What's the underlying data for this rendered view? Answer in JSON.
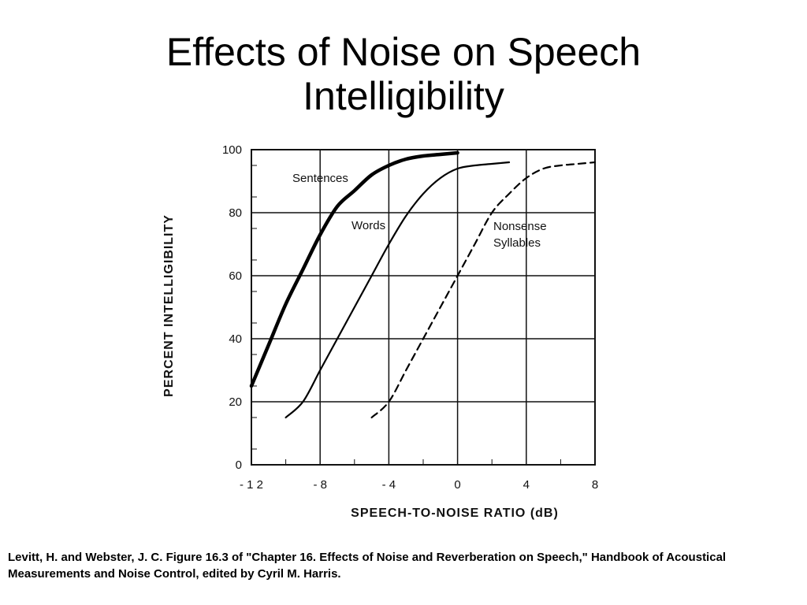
{
  "slide": {
    "title_line1": "Effects of Noise on Speech",
    "title_line2": "Intelligibility",
    "citation": "Levitt, H. and Webster, J. C. Figure 16.3 of \"Chapter 16. Effects of Noise and Reverberation on Speech,\" Handbook of Acoustical Measurements and Noise Control, edited by Cyril M. Harris."
  },
  "chart_data": {
    "type": "line",
    "title": "",
    "xlabel": "SPEECH-TO-NOISE  RATIO  (dB)",
    "ylabel": "PERCENT   INTELLIGIBILITY",
    "xlim": [
      -12,
      8
    ],
    "ylim": [
      0,
      100
    ],
    "x_ticks": [
      -12,
      -8,
      -4,
      0,
      4,
      8
    ],
    "x_tick_labels": [
      "- 1 2",
      "- 8",
      "- 4",
      "0",
      "4",
      "8"
    ],
    "y_ticks": [
      0,
      20,
      40,
      60,
      80,
      100
    ],
    "y_tick_labels": [
      "0",
      "20",
      "40",
      "60",
      "80",
      "100"
    ],
    "grid": true,
    "line_color": "#000000",
    "series": [
      {
        "label_lines": [
          "Sentences"
        ],
        "style": "solid-thick",
        "x": [
          -12,
          -11,
          -10,
          -9,
          -8,
          -7,
          -6,
          -5,
          -4,
          -3,
          -2,
          -1,
          0
        ],
        "y": [
          25,
          38,
          51,
          62,
          73,
          82,
          87,
          92,
          95,
          97,
          98,
          98.5,
          99
        ]
      },
      {
        "label_lines": [
          "Words"
        ],
        "style": "solid-thin",
        "x": [
          -10,
          -9,
          -8,
          -7,
          -6,
          -5,
          -4,
          -3,
          -2,
          -1,
          0,
          1,
          2,
          3
        ],
        "y": [
          15,
          20,
          30,
          40,
          50,
          60,
          70,
          79,
          86,
          91,
          94,
          95,
          95.5,
          96
        ]
      },
      {
        "label_lines": [
          "Nonsense",
          "Syllables"
        ],
        "style": "dashed",
        "x": [
          -5,
          -4,
          -3,
          -2,
          -1,
          0,
          1,
          2,
          3,
          4,
          5,
          6,
          7,
          8
        ],
        "y": [
          15,
          20,
          30,
          40,
          50,
          60,
          70,
          80,
          86,
          91,
          94,
          95,
          95.5,
          96
        ]
      }
    ]
  }
}
